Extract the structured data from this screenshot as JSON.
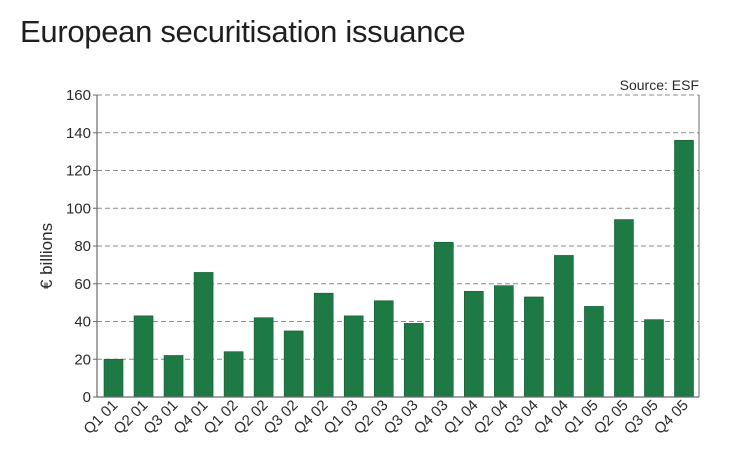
{
  "chart_data": {
    "type": "bar",
    "title": "European securitisation issuance",
    "source": "Source: ESF",
    "xlabel": "",
    "ylabel": "€ billions",
    "ylim": [
      0,
      160
    ],
    "yticks": [
      0,
      20,
      40,
      60,
      80,
      100,
      120,
      140,
      160
    ],
    "grid": true,
    "legend": "none",
    "categories": [
      "Q1 01",
      "Q2 01",
      "Q3 01",
      "Q4 01",
      "Q1 02",
      "Q2 02",
      "Q3 02",
      "Q4 02",
      "Q1 03",
      "Q2 03",
      "Q3 03",
      "Q4 03",
      "Q1 04",
      "Q2 04",
      "Q3 04",
      "Q4 04",
      "Q1 05",
      "Q2 05",
      "Q3 05",
      "Q4 05"
    ],
    "values": [
      20,
      43,
      22,
      66,
      24,
      42,
      35,
      55,
      43,
      51,
      39,
      82,
      56,
      59,
      53,
      75,
      48,
      94,
      41,
      136
    ],
    "colors": {
      "bar": "#1e7a45",
      "bar_edge": "#145c32",
      "grid": "#8c8c8c",
      "axis": "#6a6a6a"
    }
  }
}
